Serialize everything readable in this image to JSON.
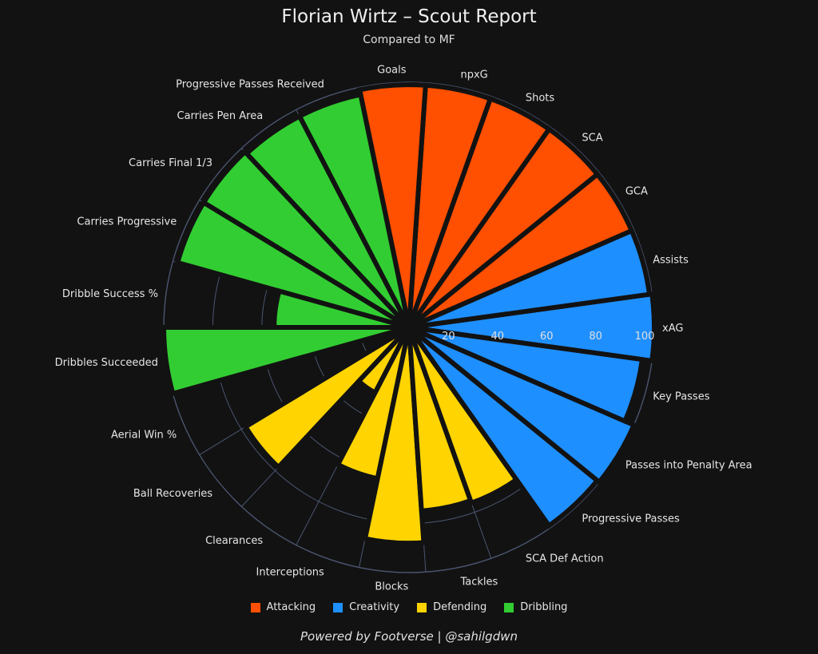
{
  "chart_data": {
    "type": "bar",
    "polar": true,
    "title": "Florian Wirtz – Scout Report",
    "subtitle": "Compared to MF",
    "radial_ticks": [
      "20",
      "40",
      "60",
      "80",
      "100"
    ],
    "rlim": [
      0,
      100
    ],
    "grid": true,
    "legend_position": "bottom",
    "categories": [
      "xAG",
      "Assists",
      "GCA",
      "SCA",
      "Shots",
      "npxG",
      "Goals",
      "Progressive Passes Received",
      "Carries Pen Area",
      "Carries Final 1/3",
      "Carries Progressive",
      "Dribble Success %",
      "Dribbles Succeeded",
      "Aerial Win %",
      "Ball Recoveries",
      "Clearances",
      "Interceptions",
      "Blocks",
      "Tackles",
      "SCA Def Action",
      "Progressive Passes",
      "Passes into Penalty Area",
      "Key Passes"
    ],
    "values": [
      100,
      99,
      99,
      99,
      99,
      99,
      99,
      97,
      97,
      98,
      98,
      55,
      100,
      2,
      78,
      30,
      63,
      88,
      75,
      76,
      99,
      100,
      96
    ],
    "groups": [
      "Creativity",
      "Creativity",
      "Attacking",
      "Attacking",
      "Attacking",
      "Attacking",
      "Attacking",
      "Dribbling",
      "Dribbling",
      "Dribbling",
      "Dribbling",
      "Dribbling",
      "Dribbling",
      "Defending",
      "Defending",
      "Defending",
      "Defending",
      "Defending",
      "Defending",
      "Defending",
      "Creativity",
      "Creativity",
      "Creativity"
    ],
    "legend": [
      {
        "name": "Attacking",
        "color": "#ff4f00"
      },
      {
        "name": "Creativity",
        "color": "#1e8fff"
      },
      {
        "name": "Defending",
        "color": "#ffd400"
      },
      {
        "name": "Dribbling",
        "color": "#32cd32"
      }
    ],
    "colors": {
      "background": "#121212",
      "grid": "#4a5570",
      "separator": "#121212"
    }
  },
  "footer": "Powered by Footverse | @sahilgdwn"
}
